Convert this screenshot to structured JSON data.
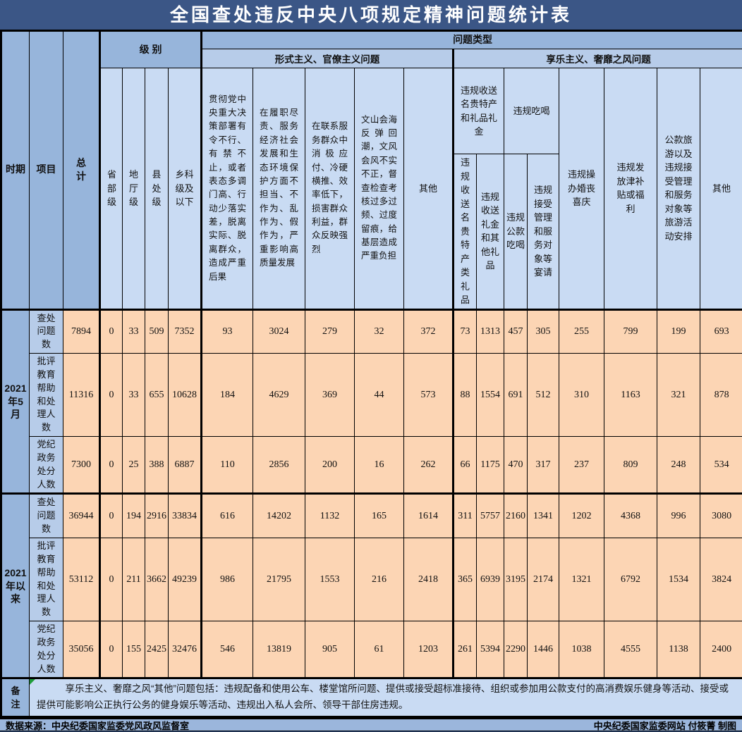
{
  "title": "全国查处违反中央八项规定精神问题统计表",
  "header": {
    "period_label": "时期",
    "item_label": "项目",
    "total_label": "总计",
    "level_group_label": "级 别",
    "problem_type_label": "问题类型",
    "level_cols": [
      "省部级",
      "地厅级",
      "县处级",
      "乡科级及以下"
    ],
    "formalism_group_label": "形式主义、官僚主义问题",
    "formalism_cols": [
      "贯彻党中央重大决策部署有令不行、有禁不止，或者表态多调门高、行动少落实差，脱离实际、脱离群众，造成严重后果",
      "在履职尽责、服务经济社会发展和生态环境保护方面不担当、不作为、乱作为、假作为，严重影响高质量发展",
      "在联系服务群众中消极应付、冷硬横推、效率低下，损害群众利益，群众反映强烈",
      "文山会海反弹回潮，文风会风不实不正，督查检查考核过多过频、过度留痕，给基层造成严重负担",
      "其他"
    ],
    "hedonism_group_label": "享乐主义、奢靡之风问题",
    "gift_group_label": "违规收送名贵特产和礼品礼金",
    "dining_group_label": "违规吃喝",
    "hedonism_sub_cols": [
      "违规收送名贵特产类礼品",
      "违规收送礼金和其他礼品",
      "违规公款吃喝",
      "违规接受管理和服务对象等宴请"
    ],
    "hedonism_tall_cols": [
      "违规操办婚丧喜庆",
      "违规发放津补贴或福利",
      "公款旅游以及违规接受管理和服务对象等旅游活动安排",
      "其他"
    ]
  },
  "body": {
    "groups": [
      {
        "period": "2021年5月",
        "rows": [
          {
            "label": "查处问题数",
            "values": [
              7894,
              0,
              33,
              509,
              7352,
              93,
              3024,
              279,
              32,
              372,
              73,
              1313,
              457,
              305,
              255,
              799,
              199,
              693
            ]
          },
          {
            "label": "批评教育帮助和处理人数",
            "values": [
              11316,
              0,
              33,
              655,
              10628,
              184,
              4629,
              369,
              44,
              573,
              88,
              1554,
              691,
              512,
              310,
              1163,
              321,
              878
            ]
          },
          {
            "label": "党纪政务处分人数",
            "values": [
              7300,
              0,
              25,
              388,
              6887,
              110,
              2856,
              200,
              16,
              262,
              66,
              1175,
              470,
              317,
              237,
              809,
              248,
              534
            ]
          }
        ]
      },
      {
        "period": "2021年以来",
        "rows": [
          {
            "label": "查处问题数",
            "values": [
              36944,
              0,
              194,
              2916,
              33834,
              616,
              14202,
              1132,
              165,
              1614,
              311,
              5757,
              2160,
              1341,
              1202,
              4368,
              996,
              3080
            ]
          },
          {
            "label": "批评教育帮助和处理人数",
            "values": [
              53112,
              0,
              211,
              3662,
              49239,
              986,
              21795,
              1553,
              216,
              2418,
              365,
              6939,
              3195,
              2174,
              1321,
              6792,
              1534,
              3824
            ]
          },
          {
            "label": "党纪政务处分人数",
            "values": [
              35056,
              0,
              155,
              2425,
              32476,
              546,
              13819,
              905,
              61,
              1203,
              261,
              5394,
              2290,
              1446,
              1038,
              4555,
              1138,
              2400
            ]
          }
        ]
      }
    ]
  },
  "note": {
    "label": "备注",
    "text": "享乐主义、奢靡之风“其他”问题包括：违规配备和使用公车、楼堂馆所问题、提供或接受超标准接待、组织或参加用公款支付的高消费娱乐健身等活动、接受或提供可能影响公正执行公务的健身娱乐等活动、违规出入私人会所、领导干部住房违规。"
  },
  "footer": {
    "source": "数据来源：中央纪委国家监委党风政风监督室",
    "credit": "中央纪委国家监委网站 付筱菁 制图"
  },
  "colors": {
    "frame_navy": "#2F4C7A",
    "title_bar": "#3B5686",
    "group_header_blue": "#97B5DB",
    "sub_header_blue": "#B7CCE9",
    "leaf_header_blue": "#C9DBF3",
    "data_cell_orange": "#FCD5B4",
    "marker_green": "#1F9D3A"
  },
  "chart_data": {
    "type": "table",
    "title": "全国查处违反中央八项规定精神问题统计表",
    "columns": [
      "时期",
      "项目",
      "总计",
      "省部级",
      "地厅级",
      "县处级",
      "乡科级及以下",
      "贯彻党中央重大决策部署有令不行、有禁不止，或者表态多调门高、行动少落实差，脱离实际、脱离群众，造成严重后果",
      "在履职尽责、服务经济社会发展和生态环境保护方面不担当、不作为、乱作为、假作为，严重影响高质量发展",
      "在联系服务群众中消极应付、冷硬横推、效率低下，损害群众利益，群众反映强烈",
      "文山会海反弹回潮，文风会风不实不正，督查检查考核过多过频、过度留痕，给基层造成严重负担",
      "其他",
      "违规收送名贵特产类礼品",
      "违规收送礼金和其他礼品",
      "违规公款吃喝",
      "违规接受管理和服务对象等宴请",
      "违规操办婚丧喜庆",
      "违规发放津补贴或福利",
      "公款旅游以及违规接受管理和服务对象等旅游活动安排",
      "其他"
    ],
    "rows": [
      [
        "2021年5月",
        "查处问题数",
        7894,
        0,
        33,
        509,
        7352,
        93,
        3024,
        279,
        32,
        372,
        73,
        1313,
        457,
        305,
        255,
        799,
        199,
        693
      ],
      [
        "2021年5月",
        "批评教育帮助和处理人数",
        11316,
        0,
        33,
        655,
        10628,
        184,
        4629,
        369,
        44,
        573,
        88,
        1554,
        691,
        512,
        310,
        1163,
        321,
        878
      ],
      [
        "2021年5月",
        "党纪政务处分人数",
        7300,
        0,
        25,
        388,
        6887,
        110,
        2856,
        200,
        16,
        262,
        66,
        1175,
        470,
        317,
        237,
        809,
        248,
        534
      ],
      [
        "2021年以来",
        "查处问题数",
        36944,
        0,
        194,
        2916,
        33834,
        616,
        14202,
        1132,
        165,
        1614,
        311,
        5757,
        2160,
        1341,
        1202,
        4368,
        996,
        3080
      ],
      [
        "2021年以来",
        "批评教育帮助和处理人数",
        53112,
        0,
        211,
        3662,
        49239,
        986,
        21795,
        1553,
        216,
        2418,
        365,
        6939,
        3195,
        2174,
        1321,
        6792,
        1534,
        3824
      ],
      [
        "2021年以来",
        "党纪政务处分人数",
        35056,
        0,
        155,
        2425,
        32476,
        546,
        13819,
        905,
        61,
        1203,
        261,
        5394,
        2290,
        1446,
        1038,
        4555,
        1138,
        2400
      ]
    ]
  }
}
